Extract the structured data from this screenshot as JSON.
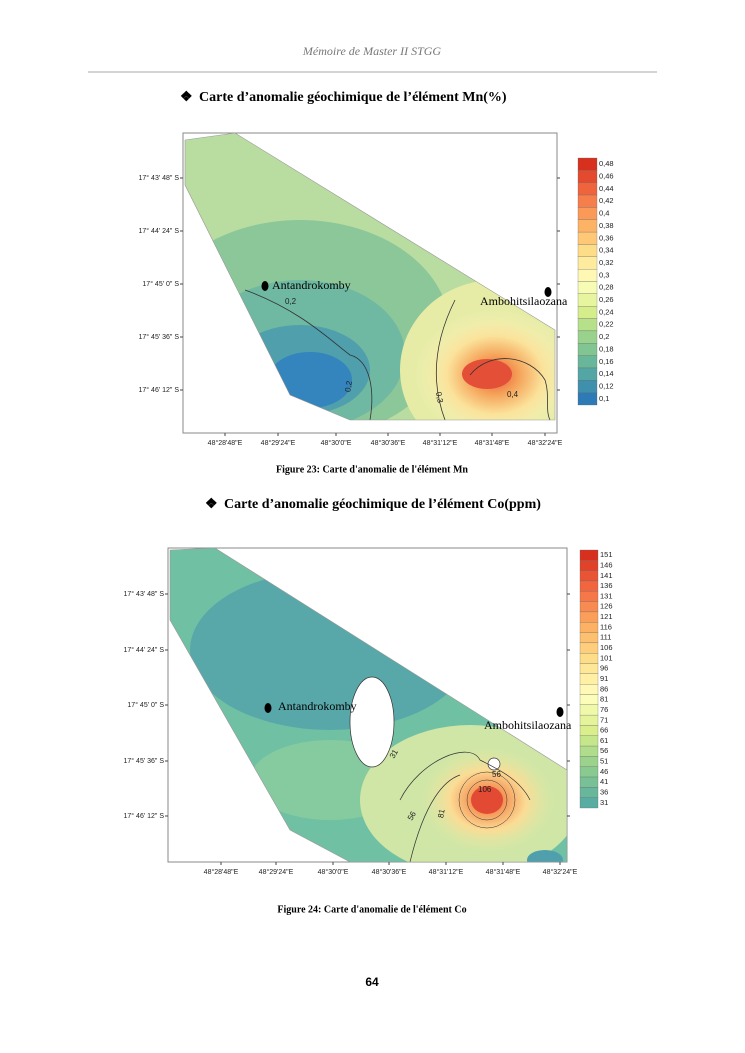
{
  "header": "Mémoire de Master II STGG",
  "bullet": "❖",
  "figures": [
    {
      "heading": "Carte d’anomalie géochimique de l’élément Mn(%)",
      "y_labels": [
        "17° 43' 48\" S",
        "17° 44' 24\" S",
        "17° 45' 0\" S",
        "17° 45' 36\" S",
        "17° 46' 12\" S"
      ],
      "x_labels": [
        "48°28'48\"E",
        "48°29'24\"E",
        "48°30'0\"E",
        "48°30'36\"E",
        "48°31'12\"E",
        "48°31'48\"E",
        "48°32'24\"E"
      ],
      "places": [
        "Antandrokomby",
        "Ambohitsilaozana"
      ],
      "contour_labels": [
        "0,2",
        "0,2",
        "0,3",
        "0,4"
      ],
      "legend": [
        "0,48",
        "0,46",
        "0,44",
        "0,42",
        "0,4",
        "0,38",
        "0,36",
        "0,34",
        "0,32",
        "0,3",
        "0,28",
        "0,26",
        "0,24",
        "0,22",
        "0,2",
        "0,18",
        "0,16",
        "0,14",
        "0,12",
        "0,1"
      ],
      "caption": "Figure 23: Carte d'anomalie de l'élément Mn"
    },
    {
      "heading": "Carte d’anomalie géochimique de l’élément Co(ppm)",
      "y_labels": [
        "17° 43' 48\" S",
        "17° 44' 24\" S",
        "17° 45' 0\" S",
        "17° 45' 36\" S",
        "17° 46' 12\" S"
      ],
      "x_labels": [
        "48°28'48\"E",
        "48°29'24\"E",
        "48°30'0\"E",
        "48°30'36\"E",
        "48°31'12\"E",
        "48°31'48\"E",
        "48°32'24\"E"
      ],
      "places": [
        "Antandrokomby",
        "Ambohitsilaozana"
      ],
      "contour_labels": [
        "31",
        "56",
        "106",
        "56",
        "81"
      ],
      "legend": [
        "151",
        "146",
        "141",
        "136",
        "131",
        "126",
        "121",
        "116",
        "111",
        "106",
        "101",
        "96",
        "91",
        "86",
        "81",
        "76",
        "71",
        "66",
        "61",
        "56",
        "51",
        "46",
        "41",
        "36",
        "31"
      ],
      "caption": "Figure 24: Carte d'anomalie de l'élément Co"
    }
  ],
  "page_number": "64"
}
